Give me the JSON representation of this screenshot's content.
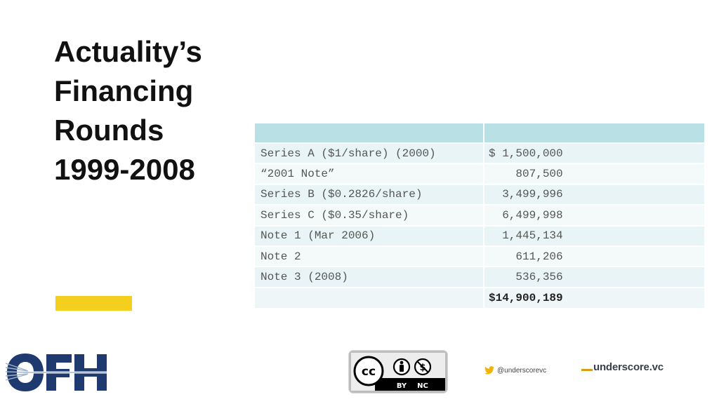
{
  "title": {
    "lines": [
      "Actuality’s",
      "Financing",
      "Rounds",
      "1999-2008"
    ]
  },
  "table": {
    "headers": [
      "",
      ""
    ],
    "rows": [
      {
        "round": "Series A ($1/share) (2000)",
        "amount": "$ 1,500,000"
      },
      {
        "round": "“2001 Note”",
        "amount": "    807,500"
      },
      {
        "round": "Series B ($0.2826/share)",
        "amount": "  3,499,996"
      },
      {
        "round": "Series C ($0.35/share)",
        "amount": "  6,499,998"
      },
      {
        "round": "Note 1 (Mar 2006)",
        "amount": "  1,445,134"
      },
      {
        "round": "Note 2",
        "amount": "    611,206"
      },
      {
        "round": "Note 3 (2008)",
        "amount": "    536,356"
      }
    ],
    "total": {
      "round": "",
      "amount": "$14,900,189"
    }
  },
  "logo": {
    "text": "OFH",
    "icon": "fiber-optic-icon",
    "color": "#1f3a6e"
  },
  "license": {
    "icon": "cc-by-nc-icon",
    "labels": [
      "BY",
      "NC"
    ]
  },
  "social": {
    "icon": "twitter-bird-icon",
    "handle": "@underscorevc"
  },
  "brand": {
    "name": "underscore.vc",
    "accent": "#d4a017"
  },
  "colors": {
    "accent_bar": "#f5cf1e",
    "table_header": "#b9e0e5",
    "table_row": "#e8f4f6"
  }
}
